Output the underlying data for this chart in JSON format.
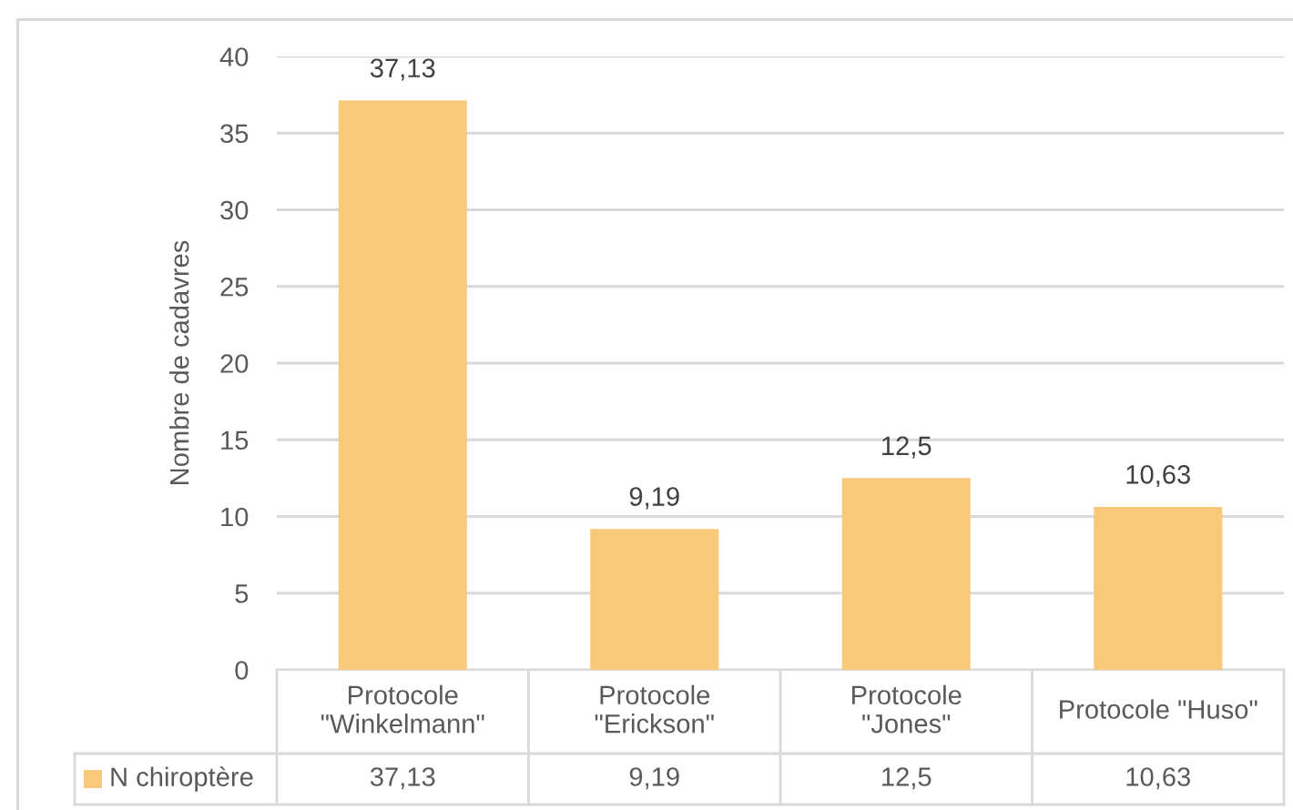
{
  "chart_data": {
    "type": "bar",
    "ylabel": "Nombre de cadavres",
    "categories": [
      "Protocole\n\"Winkelmann\"",
      "Protocole\n\"Erickson\"",
      "Protocole\n\"Jones\"",
      "Protocole \"Huso\""
    ],
    "series": [
      {
        "name": "N chiroptère",
        "color": "#f7c978",
        "values": [
          37.13,
          9.19,
          12.5,
          10.63
        ],
        "value_labels": [
          "37,13",
          "9,19",
          "12,5",
          "10,63"
        ]
      }
    ],
    "ylim": [
      0,
      40
    ],
    "yticks": [
      0,
      5,
      10,
      15,
      20,
      25,
      30,
      35,
      40
    ],
    "grid": "y"
  }
}
